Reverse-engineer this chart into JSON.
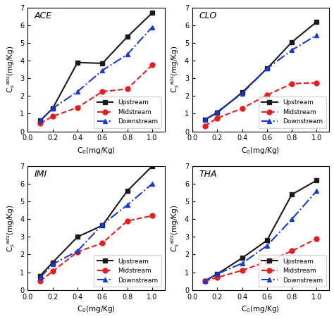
{
  "x": [
    0.1,
    0.2,
    0.4,
    0.6,
    0.8,
    1.0
  ],
  "subplots": [
    {
      "title": "ACE",
      "upstream": [
        0.6,
        1.3,
        3.9,
        3.85,
        5.35,
        6.7
      ],
      "midstream": [
        0.45,
        0.85,
        1.35,
        2.25,
        2.4,
        3.75
      ],
      "downstream": [
        0.6,
        1.3,
        2.25,
        3.45,
        4.35,
        5.9
      ],
      "ylim": [
        0,
        7
      ],
      "yticks": [
        0,
        1,
        2,
        3,
        4,
        5,
        6,
        7
      ]
    },
    {
      "title": "CLO",
      "upstream": [
        0.65,
        1.05,
        2.2,
        3.55,
        5.05,
        6.2
      ],
      "midstream": [
        0.3,
        0.75,
        1.3,
        2.05,
        2.7,
        2.75
      ],
      "downstream": [
        0.65,
        1.1,
        2.15,
        3.55,
        4.6,
        5.45
      ],
      "ylim": [
        0,
        7
      ],
      "yticks": [
        0,
        1,
        2,
        3,
        4,
        5,
        6,
        7
      ]
    },
    {
      "title": "IMI",
      "upstream": [
        0.8,
        1.55,
        3.0,
        3.65,
        5.6,
        7.0
      ],
      "midstream": [
        0.5,
        1.05,
        2.15,
        2.65,
        3.9,
        4.2
      ],
      "downstream": [
        0.7,
        1.45,
        2.2,
        3.7,
        4.8,
        6.0
      ],
      "ylim": [
        0,
        7
      ],
      "yticks": [
        0,
        1,
        2,
        3,
        4,
        5,
        6,
        7
      ]
    },
    {
      "title": "THA",
      "upstream": [
        0.5,
        0.9,
        1.8,
        2.8,
        5.4,
        6.2
      ],
      "midstream": [
        0.5,
        0.7,
        1.1,
        1.6,
        2.2,
        2.9
      ],
      "downstream": [
        0.5,
        0.9,
        1.5,
        2.5,
        4.0,
        5.6
      ],
      "ylim": [
        0,
        7
      ],
      "yticks": [
        0,
        1,
        2,
        3,
        4,
        5,
        6,
        7
      ]
    }
  ],
  "upstream_color": "#1a1a1a",
  "midstream_color": "#e02020",
  "downstream_color": "#1a3acc",
  "xlabel": "C$_0$(mg/Kg)",
  "ylabel": "C$_s$$^{ads}$(mg/Kg)",
  "legend_labels": [
    "Upstream",
    "Midstream",
    "Downstream"
  ]
}
